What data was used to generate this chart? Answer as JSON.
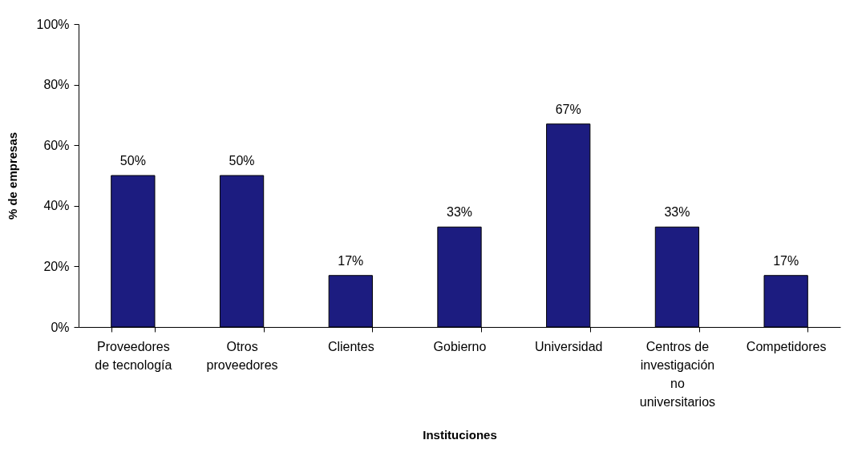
{
  "chart_data": {
    "type": "bar",
    "xlabel": "Instituciones",
    "ylabel": "% de empresas",
    "categories": [
      "Proveedores de tecnología",
      "Otros proveedores",
      "Clientes",
      "Gobierno",
      "Universidad",
      "Centros de investigación no universitarios",
      "Competidores"
    ],
    "values": [
      50,
      50,
      17,
      33,
      67,
      33,
      17
    ],
    "color": "#1c1c80",
    "value_labels": [
      "50%",
      "50%",
      "17%",
      "33%",
      "67%",
      "33%",
      "17%"
    ],
    "ylim": [
      0,
      100
    ],
    "yticks": [
      {
        "value": 0,
        "label": "0%"
      },
      {
        "value": 20,
        "label": "20%"
      },
      {
        "value": 40,
        "label": "40%"
      },
      {
        "value": 60,
        "label": "60%"
      },
      {
        "value": 80,
        "label": "80%"
      },
      {
        "value": 100,
        "label": "100%"
      }
    ]
  }
}
